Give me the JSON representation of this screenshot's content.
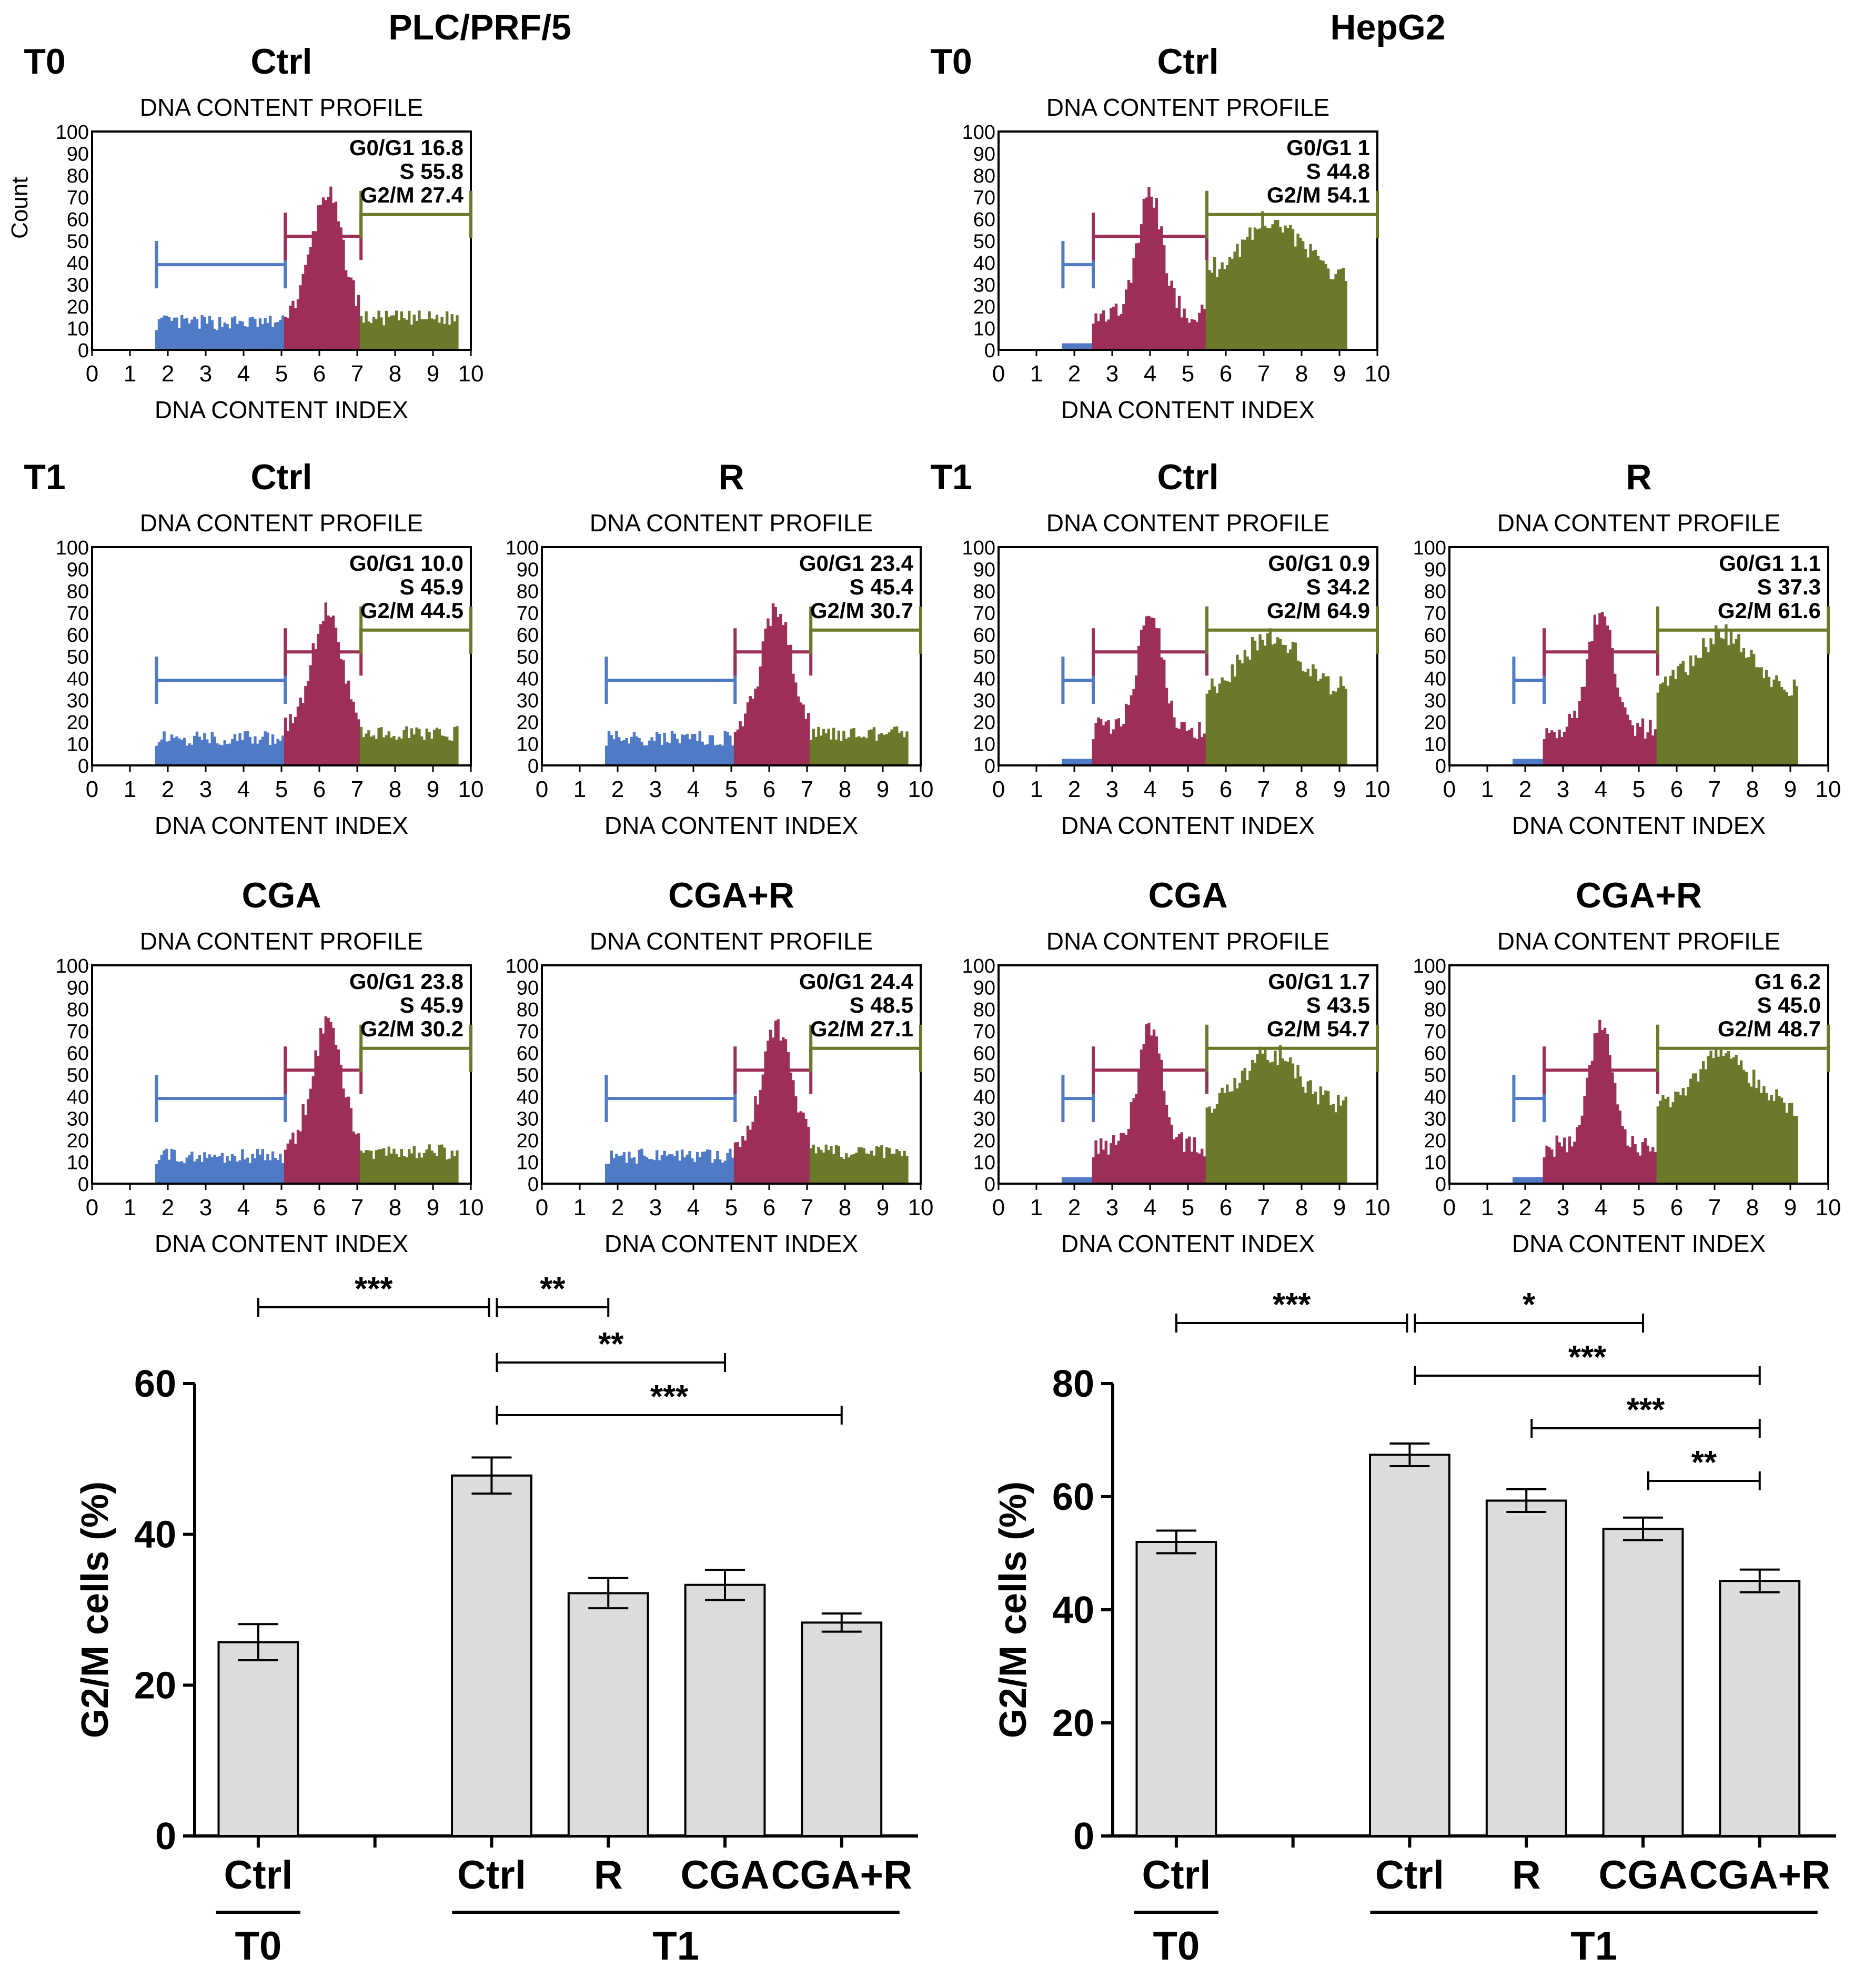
{
  "figure": {
    "left_title": "PLC/PRF/5",
    "right_title": "HepG2",
    "profile_title": "DNA CONTENT PROFILE",
    "x_axis_label": "DNA CONTENT INDEX",
    "count_label": "Count",
    "x_ticks": [
      "0",
      "1",
      "2",
      "3",
      "4",
      "5",
      "6",
      "7",
      "8",
      "9",
      "10"
    ],
    "y_ticks": [
      "0",
      "10",
      "20",
      "30",
      "40",
      "50",
      "60",
      "70",
      "80",
      "90",
      "100"
    ]
  },
  "colors": {
    "g1": "#4f7ac6",
    "s": "#9c2e58",
    "g2m": "#6b7a2a",
    "bar_fill": "#dcdcdc",
    "bar_edge": "#000000"
  },
  "histograms": [
    {
      "line": "PLC/PRF/5",
      "timepoint": "T0",
      "condition": "Ctrl",
      "stats": [
        {
          "label": "G0/G1",
          "value": "16.8"
        },
        {
          "label": "S",
          "value": "55.8"
        },
        {
          "label": "G2/M",
          "value": "27.4"
        }
      ],
      "gates": {
        "g1": [
          1.7,
          5.1
        ],
        "s": [
          5.1,
          7.1
        ],
        "g2m": [
          7.1,
          10
        ]
      }
    },
    {
      "line": "HepG2",
      "timepoint": "T0",
      "condition": "Ctrl",
      "stats": [
        {
          "label": "G0/G1",
          "value": "1"
        },
        {
          "label": "S",
          "value": "44.8"
        },
        {
          "label": "G2/M",
          "value": "54.1"
        }
      ],
      "gates": {
        "g1": [
          1.7,
          2.5
        ],
        "s": [
          2.5,
          5.5
        ],
        "g2m": [
          5.5,
          10
        ]
      }
    },
    {
      "line": "PLC/PRF/5",
      "timepoint": "T1",
      "condition": "Ctrl",
      "stats": [
        {
          "label": "G0/G1",
          "value": "10.0"
        },
        {
          "label": "S",
          "value": "45.9"
        },
        {
          "label": "G2/M",
          "value": "44.5"
        }
      ],
      "gates": {
        "g1": [
          1.7,
          5.1
        ],
        "s": [
          5.1,
          7.1
        ],
        "g2m": [
          7.1,
          10
        ]
      }
    },
    {
      "line": "PLC/PRF/5",
      "timepoint": "T1",
      "condition": "R",
      "stats": [
        {
          "label": "G0/G1",
          "value": "23.4"
        },
        {
          "label": "S",
          "value": "45.4"
        },
        {
          "label": "G2/M",
          "value": "30.7"
        }
      ],
      "gates": {
        "g1": [
          1.7,
          5.1
        ],
        "s": [
          5.1,
          7.1
        ],
        "g2m": [
          7.1,
          10
        ]
      }
    },
    {
      "line": "HepG2",
      "timepoint": "T1",
      "condition": "Ctrl",
      "stats": [
        {
          "label": "G0/G1",
          "value": "0.9"
        },
        {
          "label": "S",
          "value": "34.2"
        },
        {
          "label": "G2/M",
          "value": "64.9"
        }
      ],
      "gates": {
        "g1": [
          1.7,
          2.5
        ],
        "s": [
          2.5,
          5.5
        ],
        "g2m": [
          5.5,
          10
        ]
      }
    },
    {
      "line": "HepG2",
      "timepoint": "T1",
      "condition": "R",
      "stats": [
        {
          "label": "G0/G1",
          "value": "1.1"
        },
        {
          "label": "S",
          "value": "37.3"
        },
        {
          "label": "G2/M",
          "value": "61.6"
        }
      ],
      "gates": {
        "g1": [
          1.7,
          2.5
        ],
        "s": [
          2.5,
          5.5
        ],
        "g2m": [
          5.5,
          10
        ]
      }
    },
    {
      "line": "PLC/PRF/5",
      "timepoint": "T1",
      "condition": "CGA",
      "stats": [
        {
          "label": "G0/G1",
          "value": "23.8"
        },
        {
          "label": "S",
          "value": "45.9"
        },
        {
          "label": "G2/M",
          "value": "30.2"
        }
      ],
      "gates": {
        "g1": [
          1.7,
          5.1
        ],
        "s": [
          5.1,
          7.1
        ],
        "g2m": [
          7.1,
          10
        ]
      }
    },
    {
      "line": "PLC/PRF/5",
      "timepoint": "T1",
      "condition": "CGA+R",
      "stats": [
        {
          "label": "G0/G1",
          "value": "24.4"
        },
        {
          "label": "S",
          "value": "48.5"
        },
        {
          "label": "G2/M",
          "value": "27.1"
        }
      ],
      "gates": {
        "g1": [
          1.7,
          5.1
        ],
        "s": [
          5.1,
          7.1
        ],
        "g2m": [
          7.1,
          10
        ]
      }
    },
    {
      "line": "HepG2",
      "timepoint": "T1",
      "condition": "CGA",
      "stats": [
        {
          "label": "G0/G1",
          "value": "1.7"
        },
        {
          "label": "S",
          "value": "43.5"
        },
        {
          "label": "G2/M",
          "value": "54.7"
        }
      ],
      "gates": {
        "g1": [
          1.7,
          2.5
        ],
        "s": [
          2.5,
          5.5
        ],
        "g2m": [
          5.5,
          10
        ]
      }
    },
    {
      "line": "HepG2",
      "timepoint": "T1",
      "condition": "CGA+R",
      "stats": [
        {
          "label": "G1",
          "value": "6.2"
        },
        {
          "label": "S",
          "value": "45.0"
        },
        {
          "label": "G2/M",
          "value": "48.7"
        }
      ],
      "gates": {
        "g1": [
          1.7,
          2.5
        ],
        "s": [
          2.5,
          5.5
        ],
        "g2m": [
          5.5,
          10
        ]
      }
    }
  ],
  "chart_data": [
    {
      "type": "bar",
      "title": "PLC/PRF/5",
      "ylabel": "G2/M cells (%)",
      "ylim": [
        0,
        60
      ],
      "yticks": [
        "0",
        "20",
        "40",
        "60"
      ],
      "categories": [
        "Ctrl",
        "Ctrl",
        "R",
        "CGA",
        "CGA+R"
      ],
      "groups": [
        "T0",
        "T1",
        "T1",
        "T1",
        "T1"
      ],
      "group_labels": [
        "T0",
        "T1"
      ],
      "values": [
        25.7,
        47.8,
        32.2,
        33.3,
        28.3
      ],
      "errors": [
        2.4,
        2.4,
        2.0,
        2.0,
        1.2
      ],
      "significance": [
        {
          "from": 0,
          "to": 1,
          "label": "***"
        },
        {
          "from": 1,
          "to": 2,
          "label": "**"
        },
        {
          "from": 1,
          "to": 3,
          "label": "**"
        },
        {
          "from": 1,
          "to": 4,
          "label": "***"
        }
      ]
    },
    {
      "type": "bar",
      "title": "HepG2",
      "ylabel": "G2/M cells (%)",
      "ylim": [
        0,
        80
      ],
      "yticks": [
        "0",
        "20",
        "40",
        "60",
        "80"
      ],
      "categories": [
        "Ctrl",
        "Ctrl",
        "R",
        "CGA",
        "CGA+R"
      ],
      "groups": [
        "T0",
        "T1",
        "T1",
        "T1",
        "T1"
      ],
      "group_labels": [
        "T0",
        "T1"
      ],
      "values": [
        52.0,
        67.4,
        59.3,
        54.3,
        45.1
      ],
      "errors": [
        2.0,
        2.0,
        2.0,
        2.0,
        2.0
      ],
      "significance": [
        {
          "from": 0,
          "to": 1,
          "label": "***"
        },
        {
          "from": 1,
          "to": 3,
          "label": "*"
        },
        {
          "from": 1,
          "to": 4,
          "label": "***"
        },
        {
          "from": 2,
          "to": 4,
          "label": "***"
        },
        {
          "from": 3,
          "to": 4,
          "label": "**"
        }
      ]
    }
  ]
}
